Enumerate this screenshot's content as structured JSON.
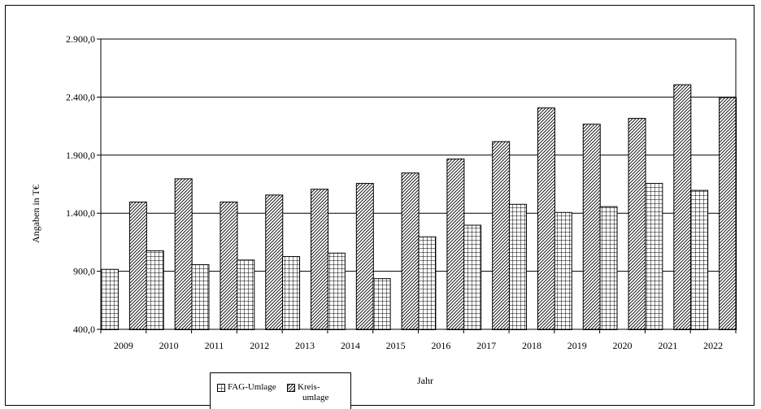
{
  "chart_data": {
    "type": "bar",
    "xlabel": "Jahr",
    "ylabel": "Angaben in T€",
    "ylim": [
      400,
      2900
    ],
    "yticks": [
      "400,0",
      "900,0",
      "1.400,0",
      "1.900,0",
      "2.400,0",
      "2.900,0"
    ],
    "ytick_values": [
      400,
      900,
      1400,
      1900,
      2400,
      2900
    ],
    "categories": [
      "2009",
      "2010",
      "2011",
      "2012",
      "2013",
      "2014",
      "2015",
      "2016",
      "2017",
      "2018",
      "2019",
      "2020",
      "2021",
      "2022"
    ],
    "series": [
      {
        "name": "FAG-Umlage",
        "pattern": "grid",
        "values": [
          920,
          1080,
          960,
          1000,
          1030,
          1060,
          840,
          1200,
          1300,
          1480,
          1410,
          1460,
          1660,
          1600
        ]
      },
      {
        "name": "Kreis-umlage",
        "pattern": "diagonal",
        "values": [
          1500,
          1700,
          1500,
          1560,
          1610,
          1660,
          1750,
          1870,
          2020,
          2310,
          2170,
          2220,
          2510,
          2400
        ]
      }
    ],
    "grid": true,
    "legend": "bottom-left"
  },
  "legend": {
    "fag_label": "FAG-Umlage",
    "kreis_label_line1": "Kreis-",
    "kreis_label_line2": "umlage"
  }
}
